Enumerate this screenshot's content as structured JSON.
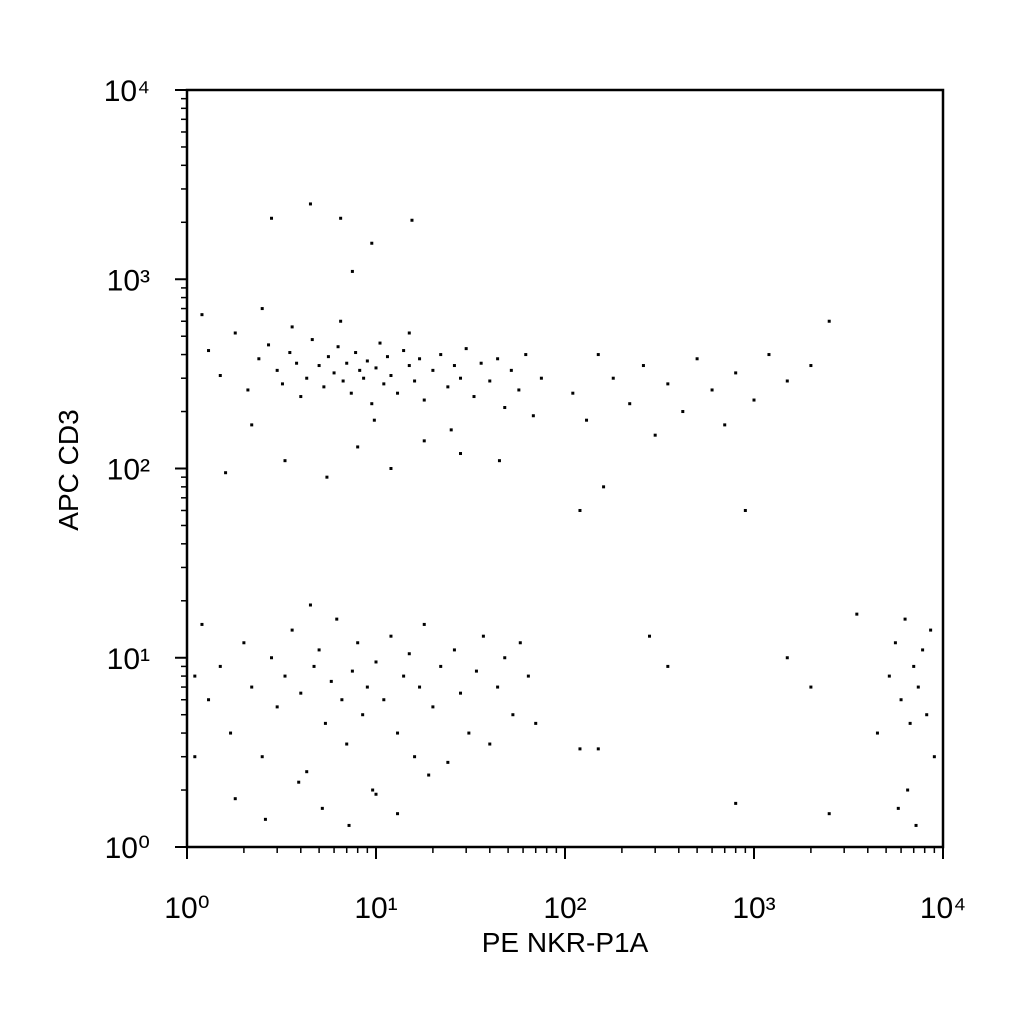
{
  "chart_data": {
    "type": "scatter",
    "xlabel": "PE NKR-P1A",
    "ylabel": "APC CD3",
    "xscale": "log",
    "yscale": "log",
    "color": "#000000",
    "xlim": [
      1,
      10000
    ],
    "ylim": [
      1,
      10000
    ],
    "xticks": [
      {
        "value": 1,
        "label": "10⁰"
      },
      {
        "value": 10,
        "label": "10¹"
      },
      {
        "value": 100,
        "label": "10²"
      },
      {
        "value": 1000,
        "label": "10³"
      },
      {
        "value": 10000,
        "label": "10⁴"
      }
    ],
    "yticks": [
      {
        "value": 1,
        "label": "10⁰"
      },
      {
        "value": 10,
        "label": "10¹"
      },
      {
        "value": 100,
        "label": "10²"
      },
      {
        "value": 1000,
        "label": "10³"
      },
      {
        "value": 10000,
        "label": "10⁴"
      }
    ],
    "xminorticks": [
      2,
      3,
      4,
      5,
      6,
      7,
      8,
      9,
      20,
      30,
      40,
      50,
      60,
      70,
      80,
      90,
      200,
      300,
      400,
      500,
      600,
      700,
      800,
      900,
      2000,
      3000,
      4000,
      5000,
      6000,
      7000,
      8000,
      9000
    ],
    "yminorticks": [
      2,
      3,
      4,
      5,
      6,
      7,
      8,
      9,
      20,
      30,
      40,
      50,
      60,
      70,
      80,
      90,
      200,
      300,
      400,
      500,
      600,
      700,
      800,
      900,
      2000,
      3000,
      4000,
      5000,
      6000,
      7000,
      8000,
      9000
    ],
    "x": [
      1.3,
      1.5,
      1.8,
      2.1,
      2.4,
      2.7,
      3.0,
      3.2,
      3.5,
      3.8,
      4.0,
      4.3,
      4.6,
      5.0,
      5.3,
      5.6,
      6.0,
      6.3,
      6.7,
      7.0,
      7.4,
      7.8,
      8.2,
      8.6,
      9.0,
      9.5,
      10,
      10.5,
      11,
      11.5,
      12,
      13,
      14,
      15,
      16,
      17,
      18,
      20,
      22,
      24,
      26,
      28,
      30,
      33,
      36,
      40,
      44,
      48,
      52,
      57,
      62,
      68,
      75,
      2.2,
      3.6,
      6.5,
      9.8,
      15,
      1.2,
      25,
      3.3,
      5.5,
      8,
      12,
      18,
      28,
      45,
      1.6,
      2.5,
      4.5,
      2.8,
      6.5,
      15.5,
      9.5,
      7.5,
      1.3,
      1.5,
      1.7,
      2.0,
      2.2,
      2.5,
      2.8,
      3.0,
      3.3,
      3.6,
      4.0,
      4.3,
      4.7,
      5.0,
      5.4,
      5.8,
      6.2,
      6.6,
      7.0,
      7.5,
      8.0,
      8.5,
      9.0,
      9.6,
      10,
      11,
      12,
      13,
      14,
      15,
      16,
      17,
      18,
      20,
      22,
      24,
      26,
      28,
      31,
      34,
      37,
      40,
      44,
      48,
      53,
      58,
      64,
      70,
      1.8,
      2.6,
      3.9,
      5.2,
      7.2,
      10,
      13,
      19,
      1.1,
      1.1,
      1.2,
      4.5,
      110,
      130,
      150,
      180,
      220,
      260,
      300,
      350,
      420,
      500,
      600,
      700,
      800,
      1000,
      1200,
      1500,
      2000,
      2500,
      120,
      160,
      900,
      280,
      350,
      1500,
      2000,
      3500,
      2500,
      150,
      120,
      800,
      5200,
      5600,
      6000,
      6300,
      6700,
      7000,
      7400,
      7800,
      8200,
      8600,
      6500,
      7200,
      4500,
      9000,
      5800
    ],
    "values": [
      420,
      310,
      520,
      260,
      380,
      450,
      330,
      280,
      410,
      360,
      240,
      300,
      480,
      350,
      270,
      390,
      320,
      440,
      290,
      360,
      250,
      410,
      330,
      300,
      370,
      220,
      340,
      460,
      280,
      390,
      310,
      250,
      420,
      350,
      290,
      380,
      230,
      330,
      400,
      270,
      350,
      300,
      430,
      240,
      360,
      290,
      380,
      210,
      330,
      260,
      400,
      190,
      300,
      170,
      560,
      600,
      180,
      520,
      650,
      160,
      110,
      90,
      130,
      100,
      140,
      120,
      110,
      95,
      700,
      2500,
      2100,
      2100,
      2050,
      1550,
      1100,
      6,
      9,
      4,
      12,
      7,
      3,
      10,
      5.5,
      8,
      14,
      6.5,
      2.5,
      9,
      11,
      4.5,
      7.5,
      16,
      6,
      3.5,
      8.5,
      12,
      5,
      7,
      2,
      9.5,
      6,
      13,
      4,
      8,
      10.5,
      3,
      7,
      15,
      5.5,
      9,
      2.8,
      11,
      6.5,
      4,
      8.5,
      13,
      3.5,
      7,
      10,
      5,
      12,
      8,
      4.5,
      1.8,
      1.4,
      2.2,
      1.6,
      1.3,
      1.9,
      1.5,
      2.4,
      3,
      8,
      15,
      19,
      250,
      180,
      400,
      300,
      220,
      350,
      150,
      280,
      200,
      380,
      260,
      170,
      320,
      230,
      400,
      290,
      350,
      600,
      60,
      80,
      60,
      13,
      9,
      10,
      7,
      17,
      1.5,
      3.3,
      3.3,
      1.7,
      8,
      12,
      6,
      16,
      4.5,
      9,
      7,
      11,
      5,
      14,
      2,
      1.3,
      4,
      3,
      1.6
    ]
  }
}
